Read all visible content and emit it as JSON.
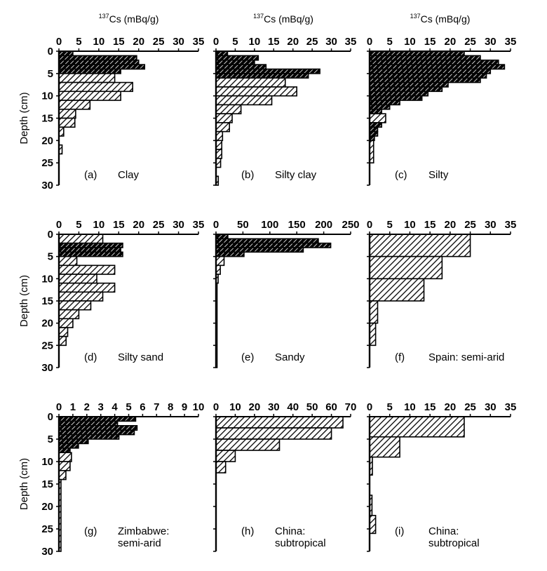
{
  "figure": {
    "axis_title_text": "Cs (mBq/g)",
    "axis_title_superscript": "137",
    "ylabel": "Depth (cm)",
    "bar_color": "#000000",
    "hatch_color": "#ffffff"
  },
  "chart_data": [
    {
      "type": "bar",
      "orientation": "horizontal",
      "panel": "(a)",
      "title": "Clay",
      "xlabel": "137Cs (mBq/g)",
      "ylabel": "Depth (cm)",
      "xlim": [
        0,
        35
      ],
      "xticks": [
        0,
        5,
        10,
        15,
        20,
        25,
        30,
        35
      ],
      "ylim": [
        0,
        30
      ],
      "yticks": [
        0,
        5,
        10,
        15,
        20,
        25,
        30
      ],
      "bars": [
        {
          "top": 0,
          "bottom": 1,
          "value": 3.5
        },
        {
          "top": 1,
          "bottom": 2,
          "value": 19.5
        },
        {
          "top": 2,
          "bottom": 3,
          "value": 20
        },
        {
          "top": 3,
          "bottom": 4,
          "value": 21.5
        },
        {
          "top": 4,
          "bottom": 5,
          "value": 15.5
        },
        {
          "top": 5,
          "bottom": 7,
          "value": 14
        },
        {
          "top": 7,
          "bottom": 9,
          "value": 18.5
        },
        {
          "top": 9,
          "bottom": 11,
          "value": 15.5
        },
        {
          "top": 11,
          "bottom": 13,
          "value": 7.8
        },
        {
          "top": 13,
          "bottom": 15,
          "value": 4.2
        },
        {
          "top": 15,
          "bottom": 17,
          "value": 4
        },
        {
          "top": 17,
          "bottom": 19,
          "value": 1.2
        },
        {
          "top": 21,
          "bottom": 23,
          "value": 0.8
        }
      ]
    },
    {
      "type": "bar",
      "orientation": "horizontal",
      "panel": "(b)",
      "title": "Silty clay",
      "xlabel": "137Cs (mBq/g)",
      "ylabel": "Depth (cm)",
      "xlim": [
        0,
        35
      ],
      "xticks": [
        0,
        5,
        10,
        15,
        20,
        25,
        30,
        35
      ],
      "ylim": [
        0,
        30
      ],
      "yticks": [
        0,
        5,
        10,
        15,
        20,
        25,
        30
      ],
      "bars": [
        {
          "top": 0,
          "bottom": 1,
          "value": 3
        },
        {
          "top": 1,
          "bottom": 2,
          "value": 11
        },
        {
          "top": 2,
          "bottom": 3,
          "value": 10
        },
        {
          "top": 3,
          "bottom": 4,
          "value": 13
        },
        {
          "top": 4,
          "bottom": 5,
          "value": 27
        },
        {
          "top": 5,
          "bottom": 6,
          "value": 24
        },
        {
          "top": 6,
          "bottom": 8,
          "value": 18
        },
        {
          "top": 8,
          "bottom": 10,
          "value": 21
        },
        {
          "top": 10,
          "bottom": 12,
          "value": 14.5
        },
        {
          "top": 12,
          "bottom": 14,
          "value": 6.5
        },
        {
          "top": 14,
          "bottom": 16,
          "value": 4.2
        },
        {
          "top": 16,
          "bottom": 18,
          "value": 3.5
        },
        {
          "top": 18,
          "bottom": 20,
          "value": 1.7
        },
        {
          "top": 20,
          "bottom": 22,
          "value": 1.5
        },
        {
          "top": 22,
          "bottom": 24,
          "value": 1.5
        },
        {
          "top": 24,
          "bottom": 26,
          "value": 1.2
        },
        {
          "top": 28,
          "bottom": 30,
          "value": 0.6
        }
      ]
    },
    {
      "type": "bar",
      "orientation": "horizontal",
      "panel": "(c)",
      "title": "Silty",
      "xlabel": "137Cs (mBq/g)",
      "ylabel": "Depth (cm)",
      "xlim": [
        0,
        35
      ],
      "xticks": [
        0,
        5,
        10,
        15,
        20,
        25,
        30,
        35
      ],
      "ylim": [
        0,
        30
      ],
      "yticks": [
        0,
        5,
        10,
        15,
        20,
        25,
        30
      ],
      "bars": [
        {
          "top": 0,
          "bottom": 1,
          "value": 23.5
        },
        {
          "top": 1,
          "bottom": 2,
          "value": 27.5
        },
        {
          "top": 2,
          "bottom": 3,
          "value": 32
        },
        {
          "top": 3,
          "bottom": 4,
          "value": 33.5
        },
        {
          "top": 4,
          "bottom": 5,
          "value": 30
        },
        {
          "top": 5,
          "bottom": 6,
          "value": 29
        },
        {
          "top": 6,
          "bottom": 7,
          "value": 27.5
        },
        {
          "top": 7,
          "bottom": 8,
          "value": 19.5
        },
        {
          "top": 8,
          "bottom": 9,
          "value": 18
        },
        {
          "top": 9,
          "bottom": 10,
          "value": 14.5
        },
        {
          "top": 10,
          "bottom": 11,
          "value": 13
        },
        {
          "top": 11,
          "bottom": 12,
          "value": 7.5
        },
        {
          "top": 12,
          "bottom": 13,
          "value": 5
        },
        {
          "top": 13,
          "bottom": 14,
          "value": 3
        },
        {
          "top": 14,
          "bottom": 16,
          "value": 4
        },
        {
          "top": 16,
          "bottom": 17,
          "value": 3
        },
        {
          "top": 17,
          "bottom": 18,
          "value": 2
        },
        {
          "top": 18,
          "bottom": 19,
          "value": 2
        },
        {
          "top": 19,
          "bottom": 20,
          "value": 1.2
        },
        {
          "top": 20,
          "bottom": 25,
          "value": 1
        }
      ]
    },
    {
      "type": "bar",
      "orientation": "horizontal",
      "panel": "(d)",
      "title": "Silty sand",
      "xlabel": "137Cs (mBq/g)",
      "ylabel": "Depth (cm)",
      "xlim": [
        0,
        35
      ],
      "xticks": [
        0,
        5,
        10,
        15,
        20,
        25,
        30,
        35
      ],
      "ylim": [
        0,
        30
      ],
      "yticks": [
        0,
        5,
        10,
        15,
        20,
        25,
        30
      ],
      "bars": [
        {
          "top": 0,
          "bottom": 2,
          "value": 11
        },
        {
          "top": 2,
          "bottom": 3,
          "value": 16
        },
        {
          "top": 3,
          "bottom": 4,
          "value": 15.5
        },
        {
          "top": 4,
          "bottom": 5,
          "value": 16
        },
        {
          "top": 5,
          "bottom": 7,
          "value": 4.5
        },
        {
          "top": 7,
          "bottom": 9,
          "value": 14
        },
        {
          "top": 9,
          "bottom": 11,
          "value": 9.5
        },
        {
          "top": 11,
          "bottom": 13,
          "value": 14
        },
        {
          "top": 13,
          "bottom": 15,
          "value": 11
        },
        {
          "top": 15,
          "bottom": 17,
          "value": 8
        },
        {
          "top": 17,
          "bottom": 19,
          "value": 5
        },
        {
          "top": 19,
          "bottom": 21,
          "value": 3.5
        },
        {
          "top": 21,
          "bottom": 23,
          "value": 2.2
        },
        {
          "top": 23,
          "bottom": 25,
          "value": 1.8
        }
      ]
    },
    {
      "type": "bar",
      "orientation": "horizontal",
      "panel": "(e)",
      "title": "Sandy",
      "xlabel": "137Cs (mBq/g)",
      "ylabel": "Depth (cm)",
      "xlim": [
        0,
        250
      ],
      "xticks": [
        0,
        50,
        100,
        150,
        200,
        250
      ],
      "ylim": [
        0,
        30
      ],
      "yticks": [
        0,
        5,
        10,
        15,
        20,
        25,
        30
      ],
      "bars": [
        {
          "top": 0,
          "bottom": 1,
          "value": 22
        },
        {
          "top": 1,
          "bottom": 2,
          "value": 190
        },
        {
          "top": 2,
          "bottom": 3,
          "value": 213
        },
        {
          "top": 3,
          "bottom": 4,
          "value": 162
        },
        {
          "top": 4,
          "bottom": 5,
          "value": 52
        },
        {
          "top": 5,
          "bottom": 7,
          "value": 15
        },
        {
          "top": 7,
          "bottom": 9,
          "value": 8
        },
        {
          "top": 9,
          "bottom": 11,
          "value": 4
        },
        {
          "top": 11,
          "bottom": 30,
          "value": 2
        }
      ]
    },
    {
      "type": "bar",
      "orientation": "horizontal",
      "panel": "(f)",
      "title": "Spain: semi-arid",
      "xlabel": "137Cs (mBq/g)",
      "ylabel": "Depth (cm)",
      "xlim": [
        0,
        35
      ],
      "xticks": [
        0,
        5,
        10,
        15,
        20,
        25,
        30,
        35
      ],
      "ylim": [
        0,
        30
      ],
      "yticks": [
        0,
        5,
        10,
        15,
        20,
        25,
        30
      ],
      "bars": [
        {
          "top": 0,
          "bottom": 5,
          "value": 25
        },
        {
          "top": 5,
          "bottom": 10,
          "value": 18
        },
        {
          "top": 10,
          "bottom": 15,
          "value": 13.5
        },
        {
          "top": 15,
          "bottom": 20,
          "value": 2
        },
        {
          "top": 20,
          "bottom": 25,
          "value": 1.5
        }
      ]
    },
    {
      "type": "bar",
      "orientation": "horizontal",
      "panel": "(g)",
      "title": "Zimbabwe:",
      "title_line2": "semi-arid",
      "xlabel": "137Cs (mBq/g)",
      "ylabel": "Depth (cm)",
      "xlim": [
        0,
        10
      ],
      "xticks": [
        0,
        1,
        2,
        3,
        4,
        5,
        6,
        7,
        8,
        9,
        10
      ],
      "ylim": [
        0,
        30
      ],
      "yticks": [
        0,
        5,
        10,
        15,
        20,
        25,
        30
      ],
      "bars": [
        {
          "top": 0,
          "bottom": 1,
          "value": 5.5
        },
        {
          "top": 1,
          "bottom": 2,
          "value": 4.2
        },
        {
          "top": 2,
          "bottom": 3,
          "value": 5.6
        },
        {
          "top": 3,
          "bottom": 4,
          "value": 5.4
        },
        {
          "top": 4,
          "bottom": 5,
          "value": 4.3
        },
        {
          "top": 5,
          "bottom": 6,
          "value": 2.1
        },
        {
          "top": 6,
          "bottom": 7,
          "value": 1.4
        },
        {
          "top": 7,
          "bottom": 8,
          "value": 0.8
        },
        {
          "top": 8,
          "bottom": 10,
          "value": 0.9
        },
        {
          "top": 10,
          "bottom": 12,
          "value": 0.8
        },
        {
          "top": 12,
          "bottom": 14,
          "value": 0.5
        },
        {
          "top": 14,
          "bottom": 30,
          "value": 0.15
        }
      ]
    },
    {
      "type": "bar",
      "orientation": "horizontal",
      "panel": "(h)",
      "title": "China:",
      "title_line2": "subtropical",
      "xlabel": "137Cs (mBq/g)",
      "ylabel": "Depth (cm)",
      "xlim": [
        0,
        70
      ],
      "xticks": [
        0,
        10,
        20,
        30,
        40,
        50,
        60,
        70
      ],
      "ylim": [
        0,
        30
      ],
      "yticks": [
        0,
        5,
        10,
        15,
        20,
        25,
        30
      ],
      "bars": [
        {
          "top": 0,
          "bottom": 2.5,
          "value": 66
        },
        {
          "top": 2.5,
          "bottom": 5,
          "value": 60
        },
        {
          "top": 5,
          "bottom": 7.5,
          "value": 33
        },
        {
          "top": 7.5,
          "bottom": 10,
          "value": 10
        },
        {
          "top": 10,
          "bottom": 12.5,
          "value": 5
        }
      ]
    },
    {
      "type": "bar",
      "orientation": "horizontal",
      "panel": "(i)",
      "title": "China:",
      "title_line2": "subtropical",
      "xlabel": "137Cs (mBq/g)",
      "ylabel": "Depth (cm)",
      "xlim": [
        0,
        35
      ],
      "xticks": [
        0,
        5,
        10,
        15,
        20,
        25,
        30,
        35
      ],
      "ylim": [
        0,
        30
      ],
      "yticks": [
        0,
        5,
        10,
        15,
        20,
        25,
        30
      ],
      "bars": [
        {
          "top": 0,
          "bottom": 4.5,
          "value": 23.5
        },
        {
          "top": 4.5,
          "bottom": 9,
          "value": 7.5
        },
        {
          "top": 9,
          "bottom": 13,
          "value": 0.7
        },
        {
          "top": 17.5,
          "bottom": 22,
          "value": 0.6
        },
        {
          "top": 22,
          "bottom": 26,
          "value": 1.5
        }
      ]
    }
  ]
}
